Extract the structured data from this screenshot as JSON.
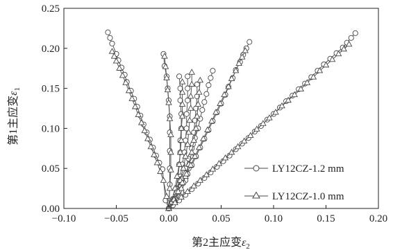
{
  "chart_data": {
    "type": "scatter",
    "xlabel_main": "第2主应变",
    "xlabel_symbol": "ε",
    "xlabel_sub": "2",
    "ylabel_main": "第1主应变",
    "ylabel_symbol": "ε",
    "ylabel_sub": "1",
    "xlim": [
      -0.1,
      0.2
    ],
    "ylim": [
      0.0,
      0.25
    ],
    "xticks": [
      -0.1,
      -0.05,
      0.0,
      0.05,
      0.1,
      0.15,
      0.2
    ],
    "xtick_labels": [
      "−0.10",
      "−0.05",
      "0.00",
      "0.05",
      "0.10",
      "0.15",
      "0.20"
    ],
    "yticks": [
      0.0,
      0.05,
      0.1,
      0.15,
      0.2,
      0.25
    ],
    "ytick_labels": [
      "0.00",
      "0.05",
      "0.10",
      "0.15",
      "0.20",
      "0.25"
    ],
    "grid": false,
    "legend_position": "bottom-right",
    "series": [
      {
        "name": "LY12CZ-1.2 mm",
        "marker": "circle",
        "branches": [
          [
            [
              -0.058,
              0.22
            ],
            [
              -0.056,
              0.213
            ],
            [
              -0.054,
              0.206
            ],
            [
              -0.05,
              0.193
            ],
            [
              -0.048,
              0.185
            ],
            [
              -0.045,
              0.176
            ],
            [
              -0.042,
              0.167
            ],
            [
              -0.04,
              0.158
            ],
            [
              -0.036,
              0.147
            ],
            [
              -0.033,
              0.137
            ],
            [
              -0.03,
              0.127
            ],
            [
              -0.027,
              0.116
            ],
            [
              -0.024,
              0.105
            ],
            [
              -0.021,
              0.095
            ],
            [
              -0.018,
              0.086
            ],
            [
              -0.015,
              0.076
            ],
            [
              -0.012,
              0.066
            ],
            [
              -0.009,
              0.057
            ],
            [
              -0.006,
              0.049
            ],
            [
              -0.003,
              0.01
            ],
            [
              0.0,
              0.0
            ]
          ],
          [
            [
              -0.005,
              0.193
            ],
            [
              -0.004,
              0.178
            ],
            [
              -0.002,
              0.165
            ],
            [
              -0.001,
              0.15
            ],
            [
              0.0,
              0.135
            ],
            [
              0.001,
              0.115
            ],
            [
              0.001,
              0.095
            ],
            [
              0.001,
              0.072
            ],
            [
              0.001,
              0.05
            ],
            [
              0.001,
              0.03
            ],
            [
              0.0,
              0.0
            ]
          ],
          [
            [
              0.01,
              0.165
            ],
            [
              0.011,
              0.15
            ],
            [
              0.011,
              0.135
            ],
            [
              0.012,
              0.118
            ],
            [
              0.012,
              0.1
            ],
            [
              0.011,
              0.085
            ],
            [
              0.011,
              0.07
            ],
            [
              0.01,
              0.055
            ],
            [
              0.009,
              0.04
            ],
            [
              0.007,
              0.025
            ],
            [
              0.005,
              0.01
            ],
            [
              0.0,
              0.0
            ]
          ],
          [
            [
              0.018,
              0.165
            ],
            [
              0.018,
              0.15
            ],
            [
              0.018,
              0.135
            ],
            [
              0.017,
              0.118
            ],
            [
              0.017,
              0.1
            ],
            [
              0.016,
              0.085
            ],
            [
              0.015,
              0.07
            ],
            [
              0.013,
              0.055
            ],
            [
              0.011,
              0.04
            ],
            [
              0.008,
              0.025
            ],
            [
              0.004,
              0.01
            ],
            [
              0.0,
              0.0
            ]
          ],
          [
            [
              0.027,
              0.155
            ],
            [
              0.027,
              0.14
            ],
            [
              0.026,
              0.125
            ],
            [
              0.025,
              0.11
            ],
            [
              0.024,
              0.095
            ],
            [
              0.023,
              0.08
            ],
            [
              0.021,
              0.065
            ],
            [
              0.019,
              0.05
            ],
            [
              0.016,
              0.035
            ],
            [
              0.012,
              0.02
            ],
            [
              0.006,
              0.008
            ],
            [
              0.0,
              0.0
            ]
          ],
          [
            [
              0.042,
              0.172
            ],
            [
              0.04,
              0.163
            ],
            [
              0.038,
              0.154
            ],
            [
              0.036,
              0.143
            ],
            [
              0.034,
              0.133
            ],
            [
              0.032,
              0.123
            ],
            [
              0.03,
              0.112
            ],
            [
              0.028,
              0.1
            ],
            [
              0.025,
              0.088
            ],
            [
              0.022,
              0.075
            ],
            [
              0.019,
              0.062
            ],
            [
              0.016,
              0.05
            ],
            [
              0.012,
              0.037
            ],
            [
              0.008,
              0.024
            ],
            [
              0.004,
              0.012
            ],
            [
              0.0,
              0.0
            ]
          ],
          [
            [
              0.077,
              0.208
            ],
            [
              0.074,
              0.2
            ],
            [
              0.071,
              0.192
            ],
            [
              0.068,
              0.183
            ],
            [
              0.064,
              0.173
            ],
            [
              0.061,
              0.163
            ],
            [
              0.057,
              0.152
            ],
            [
              0.054,
              0.142
            ],
            [
              0.05,
              0.131
            ],
            [
              0.046,
              0.12
            ],
            [
              0.042,
              0.109
            ],
            [
              0.038,
              0.098
            ],
            [
              0.034,
              0.087
            ],
            [
              0.03,
              0.076
            ],
            [
              0.026,
              0.065
            ],
            [
              0.022,
              0.054
            ],
            [
              0.018,
              0.043
            ],
            [
              0.014,
              0.032
            ],
            [
              0.01,
              0.022
            ],
            [
              0.006,
              0.012
            ],
            [
              0.0,
              0.0
            ]
          ],
          [
            [
              0.178,
              0.219
            ],
            [
              0.174,
              0.213
            ],
            [
              0.17,
              0.207
            ],
            [
              0.166,
              0.201
            ],
            [
              0.16,
              0.194
            ],
            [
              0.154,
              0.187
            ],
            [
              0.148,
              0.18
            ],
            [
              0.142,
              0.172
            ],
            [
              0.136,
              0.164
            ],
            [
              0.13,
              0.156
            ],
            [
              0.124,
              0.149
            ],
            [
              0.118,
              0.141
            ],
            [
              0.112,
              0.134
            ],
            [
              0.106,
              0.126
            ],
            [
              0.1,
              0.118
            ],
            [
              0.094,
              0.111
            ],
            [
              0.088,
              0.103
            ],
            [
              0.082,
              0.096
            ],
            [
              0.076,
              0.088
            ],
            [
              0.07,
              0.081
            ],
            [
              0.064,
              0.074
            ],
            [
              0.058,
              0.066
            ],
            [
              0.052,
              0.059
            ],
            [
              0.046,
              0.052
            ],
            [
              0.04,
              0.045
            ],
            [
              0.034,
              0.038
            ],
            [
              0.028,
              0.031
            ],
            [
              0.022,
              0.024
            ],
            [
              0.016,
              0.017
            ],
            [
              0.01,
              0.01
            ],
            [
              0.004,
              0.004
            ],
            [
              0.0,
              0.0
            ]
          ]
        ]
      },
      {
        "name": "LY12CZ-1.0 mm",
        "marker": "triangle",
        "branches": [
          [
            [
              -0.054,
              0.196
            ],
            [
              -0.052,
              0.19
            ],
            [
              -0.05,
              0.184
            ],
            [
              -0.047,
              0.175
            ],
            [
              -0.044,
              0.166
            ],
            [
              -0.041,
              0.157
            ],
            [
              -0.038,
              0.147
            ],
            [
              -0.035,
              0.137
            ],
            [
              -0.032,
              0.127
            ],
            [
              -0.029,
              0.117
            ],
            [
              -0.026,
              0.107
            ],
            [
              -0.023,
              0.097
            ],
            [
              -0.02,
              0.087
            ],
            [
              -0.017,
              0.077
            ],
            [
              -0.014,
              0.067
            ],
            [
              -0.011,
              0.057
            ],
            [
              -0.008,
              0.046
            ],
            [
              -0.005,
              0.035
            ],
            [
              -0.002,
              0.015
            ],
            [
              0.0,
              0.0
            ]
          ],
          [
            [
              -0.004,
              0.19
            ],
            [
              -0.003,
              0.177
            ],
            [
              -0.002,
              0.163
            ],
            [
              -0.001,
              0.148
            ],
            [
              0.0,
              0.132
            ],
            [
              0.001,
              0.112
            ],
            [
              0.002,
              0.092
            ],
            [
              0.002,
              0.07
            ],
            [
              0.002,
              0.048
            ],
            [
              0.001,
              0.025
            ],
            [
              0.0,
              0.0
            ]
          ],
          [
            [
              0.013,
              0.158
            ],
            [
              0.013,
              0.145
            ],
            [
              0.013,
              0.13
            ],
            [
              0.013,
              0.115
            ],
            [
              0.012,
              0.1
            ],
            [
              0.012,
              0.085
            ],
            [
              0.011,
              0.07
            ],
            [
              0.01,
              0.055
            ],
            [
              0.008,
              0.04
            ],
            [
              0.006,
              0.025
            ],
            [
              0.003,
              0.01
            ],
            [
              0.0,
              0.0
            ]
          ],
          [
            [
              0.022,
              0.17
            ],
            [
              0.022,
              0.155
            ],
            [
              0.021,
              0.14
            ],
            [
              0.021,
              0.125
            ],
            [
              0.02,
              0.11
            ],
            [
              0.019,
              0.095
            ],
            [
              0.018,
              0.08
            ],
            [
              0.016,
              0.065
            ],
            [
              0.014,
              0.05
            ],
            [
              0.011,
              0.035
            ],
            [
              0.007,
              0.02
            ],
            [
              0.003,
              0.008
            ],
            [
              0.0,
              0.0
            ]
          ],
          [
            [
              0.03,
              0.16
            ],
            [
              0.029,
              0.145
            ],
            [
              0.028,
              0.13
            ],
            [
              0.027,
              0.115
            ],
            [
              0.026,
              0.1
            ],
            [
              0.024,
              0.085
            ],
            [
              0.022,
              0.07
            ],
            [
              0.019,
              0.055
            ],
            [
              0.016,
              0.04
            ],
            [
              0.012,
              0.025
            ],
            [
              0.006,
              0.01
            ],
            [
              0.0,
              0.0
            ]
          ],
          [
            [
              0.073,
              0.197
            ],
            [
              0.07,
              0.189
            ],
            [
              0.067,
              0.181
            ],
            [
              0.064,
              0.172
            ],
            [
              0.06,
              0.162
            ],
            [
              0.057,
              0.152
            ],
            [
              0.053,
              0.142
            ],
            [
              0.049,
              0.131
            ],
            [
              0.045,
              0.12
            ],
            [
              0.041,
              0.109
            ],
            [
              0.037,
              0.098
            ],
            [
              0.033,
              0.087
            ],
            [
              0.029,
              0.076
            ],
            [
              0.025,
              0.065
            ],
            [
              0.021,
              0.054
            ],
            [
              0.017,
              0.043
            ],
            [
              0.013,
              0.032
            ],
            [
              0.009,
              0.021
            ],
            [
              0.005,
              0.011
            ],
            [
              0.0,
              0.0
            ]
          ],
          [
            [
              0.172,
              0.205
            ],
            [
              0.167,
              0.199
            ],
            [
              0.162,
              0.193
            ],
            [
              0.156,
              0.186
            ],
            [
              0.15,
              0.179
            ],
            [
              0.144,
              0.172
            ],
            [
              0.138,
              0.164
            ],
            [
              0.132,
              0.157
            ],
            [
              0.126,
              0.149
            ],
            [
              0.12,
              0.142
            ],
            [
              0.114,
              0.135
            ],
            [
              0.108,
              0.128
            ],
            [
              0.102,
              0.12
            ],
            [
              0.096,
              0.113
            ],
            [
              0.09,
              0.106
            ],
            [
              0.084,
              0.099
            ],
            [
              0.078,
              0.091
            ],
            [
              0.072,
              0.084
            ],
            [
              0.066,
              0.077
            ],
            [
              0.06,
              0.07
            ],
            [
              0.054,
              0.063
            ],
            [
              0.048,
              0.056
            ],
            [
              0.042,
              0.049
            ],
            [
              0.036,
              0.042
            ],
            [
              0.03,
              0.035
            ],
            [
              0.024,
              0.028
            ],
            [
              0.018,
              0.021
            ],
            [
              0.012,
              0.014
            ],
            [
              0.006,
              0.007
            ],
            [
              0.0,
              0.0
            ]
          ]
        ]
      }
    ]
  }
}
